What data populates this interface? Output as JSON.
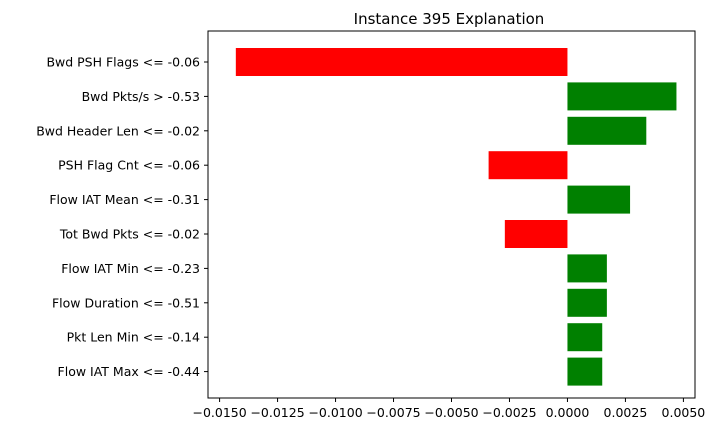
{
  "chart_data": {
    "type": "bar",
    "orientation": "horizontal",
    "title": "Instance 395 Explanation",
    "xlabel": "",
    "ylabel": "",
    "categories": [
      "Bwd PSH Flags <= -0.06",
      "Bwd Pkts/s > -0.53",
      "Bwd Header Len <= -0.02",
      "PSH Flag Cnt <= -0.06",
      "Flow IAT Mean <= -0.31",
      "Tot Bwd Pkts <= -0.02",
      "Flow IAT Min <= -0.23",
      "Flow Duration <= -0.51",
      "Pkt Len Min <= -0.14",
      "Flow IAT Max <= -0.44"
    ],
    "values": [
      -0.0143,
      0.0047,
      0.0034,
      -0.0034,
      0.0027,
      -0.0027,
      0.0017,
      0.0017,
      0.0015,
      0.0015
    ],
    "xlim": [
      -0.0155,
      0.0055
    ],
    "xticks": [
      -0.015,
      -0.0125,
      -0.01,
      -0.0075,
      -0.005,
      -0.0025,
      0,
      0.0025,
      0.005
    ],
    "xtick_labels": [
      "−0.0150",
      "−0.0125",
      "−0.0100",
      "−0.0075",
      "−0.0050",
      "−0.0025",
      "0.0000",
      "0.0025",
      "0.0050"
    ],
    "grid": false,
    "legend": "none",
    "colors": {
      "positive": "#008000",
      "negative": "#ff0000"
    }
  }
}
